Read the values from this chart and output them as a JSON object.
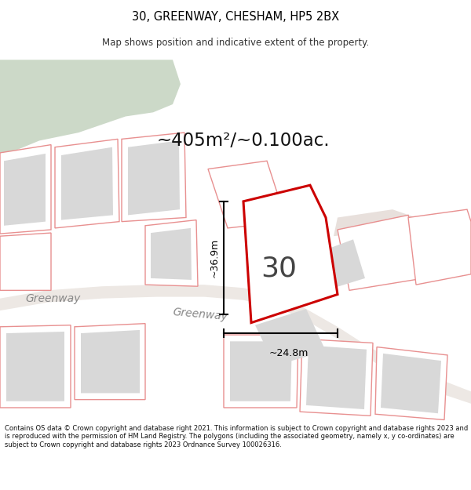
{
  "title": "30, GREENWAY, CHESHAM, HP5 2BX",
  "subtitle": "Map shows position and indicative extent of the property.",
  "area_label": "~405m²/~0.100ac.",
  "number_label": "30",
  "dim_h": "~36.9m",
  "dim_w": "~24.8m",
  "road_label1": "Greenway",
  "road_label2": "Greenway",
  "footer": "Contains OS data © Crown copyright and database right 2021. This information is subject to Crown copyright and database rights 2023 and is reproduced with the permission of HM Land Registry. The polygons (including the associated geometry, namely x, y co-ordinates) are subject to Crown copyright and database rights 2023 Ordnance Survey 100026316.",
  "map_bg": "#ffffff",
  "green_color": "#ccd9c8",
  "plot_fill": "#ffffff",
  "plot_stroke": "#cc0000",
  "outline_fill": "#ffffff",
  "outline_stroke": "#e89090",
  "gray_fill": "#d8d8d8",
  "road_color": "#e8d8d0"
}
